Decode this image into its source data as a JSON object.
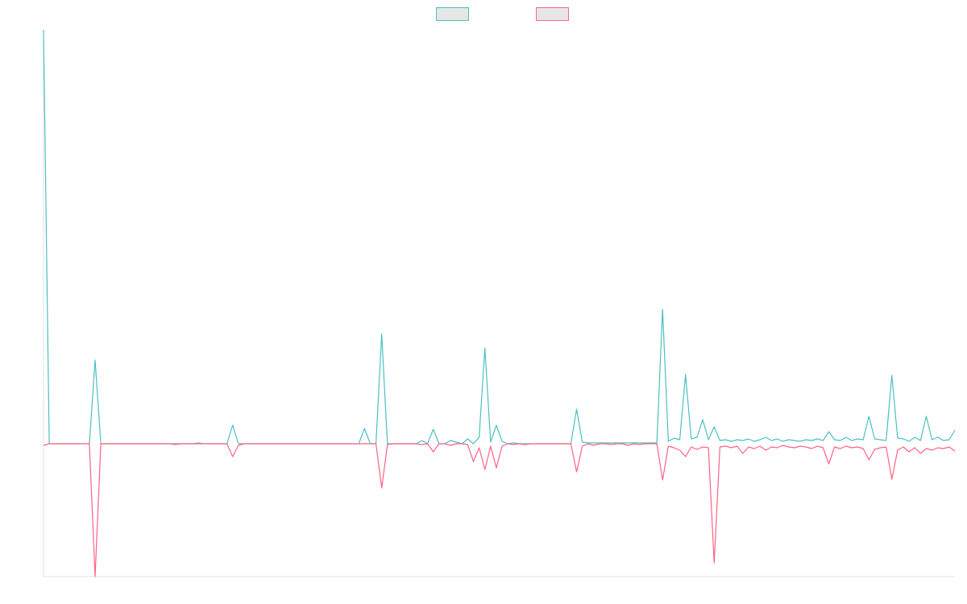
{
  "chart_data": {
    "type": "line",
    "x": [
      0,
      1,
      2,
      3,
      4,
      5,
      6,
      7,
      8,
      9,
      10,
      11,
      12,
      13,
      14,
      15,
      16,
      17,
      18,
      19,
      20,
      21,
      22,
      23,
      24,
      25,
      26,
      27,
      28,
      29,
      30,
      31,
      32,
      33,
      34,
      35,
      36,
      37,
      38,
      39,
      40,
      41,
      42,
      43,
      44,
      45,
      46,
      47,
      48,
      49,
      50,
      51,
      52,
      53,
      54,
      55,
      56,
      57,
      58,
      59,
      60,
      61,
      62,
      63,
      64,
      65,
      66,
      67,
      68,
      69,
      70,
      71,
      72,
      73,
      74,
      75,
      76,
      77,
      78,
      79,
      80,
      81,
      82,
      83,
      84,
      85,
      86,
      87,
      88,
      89,
      90,
      91,
      92,
      93,
      94,
      95,
      96,
      97,
      98,
      99,
      100,
      101,
      102,
      103,
      104,
      105,
      106,
      107,
      108,
      109,
      110,
      111,
      112,
      113,
      114,
      115,
      116,
      117,
      118,
      119,
      120,
      121,
      122,
      123,
      124,
      125,
      126,
      127,
      128,
      129,
      130,
      131,
      132,
      133,
      134,
      135,
      136,
      137,
      138,
      139,
      140,
      141,
      142,
      143,
      144,
      145,
      146,
      147,
      148,
      149,
      150,
      151,
      152,
      153,
      154,
      155,
      156,
      157,
      158,
      159
    ],
    "xlim": [
      0,
      159
    ],
    "ylim": [
      -165,
      514
    ],
    "legend": "top",
    "series": [
      {
        "color": "#4bc0c0",
        "values": [
          514,
          0,
          0,
          0,
          0,
          0,
          0,
          0,
          0,
          104,
          0,
          0,
          0,
          0,
          0,
          0,
          0,
          0,
          0,
          0,
          0,
          0,
          0,
          0,
          0,
          0,
          0,
          1,
          0,
          0,
          0,
          0,
          0,
          23,
          0,
          0,
          0,
          0,
          0,
          0,
          0,
          0,
          0,
          0,
          0,
          0,
          0,
          0,
          0,
          0,
          0,
          0,
          0,
          0,
          0,
          0,
          19,
          0,
          0,
          136,
          0,
          0,
          0,
          0,
          0,
          0,
          4,
          0,
          18,
          0,
          0,
          4,
          2,
          0,
          6,
          0,
          8,
          119,
          2,
          23,
          3,
          0,
          1,
          0,
          0,
          0,
          0,
          0,
          0,
          0,
          0,
          0,
          0,
          43,
          2,
          1,
          1,
          1,
          1,
          1,
          1,
          1,
          1,
          1,
          1,
          1,
          1,
          1,
          167,
          3,
          7,
          5,
          86,
          6,
          8,
          30,
          5,
          21,
          4,
          5,
          3,
          5,
          4,
          6,
          3,
          5,
          8,
          4,
          6,
          3,
          5,
          4,
          3,
          5,
          4,
          6,
          4,
          15,
          5,
          4,
          8,
          4,
          6,
          5,
          34,
          6,
          5,
          4,
          85,
          7,
          6,
          3,
          8,
          4,
          34,
          5,
          8,
          4,
          5,
          17
        ]
      },
      {
        "color": "#ff6384",
        "values": [
          -2,
          0,
          0,
          0,
          0,
          0,
          0,
          0,
          0,
          -165,
          0,
          0,
          0,
          0,
          0,
          0,
          0,
          0,
          0,
          0,
          0,
          0,
          0,
          -1,
          0,
          0,
          0,
          0,
          0,
          0,
          0,
          0,
          0,
          -16,
          -2,
          0,
          0,
          0,
          0,
          0,
          0,
          0,
          0,
          0,
          0,
          0,
          0,
          0,
          0,
          0,
          0,
          0,
          0,
          0,
          0,
          0,
          0,
          0,
          0,
          -55,
          -1,
          0,
          0,
          0,
          0,
          0,
          -1,
          0,
          -10,
          0,
          0,
          -2,
          0,
          0,
          -1,
          -22,
          -5,
          -32,
          -3,
          -30,
          -3,
          0,
          -1,
          0,
          -1,
          0,
          0,
          0,
          0,
          0,
          0,
          0,
          0,
          -35,
          -3,
          0,
          -2,
          0,
          0,
          -1,
          0,
          0,
          -2,
          0,
          -1,
          0,
          0,
          0,
          -45,
          -3,
          -5,
          -8,
          -16,
          -4,
          -7,
          -4,
          -5,
          -148,
          -4,
          -3,
          -5,
          -3,
          -12,
          -4,
          -6,
          -3,
          -8,
          -4,
          -5,
          -2,
          -4,
          -5,
          -3,
          -4,
          -6,
          -3,
          -5,
          -25,
          -4,
          -6,
          -3,
          -5,
          -4,
          -6,
          -20,
          -7,
          -5,
          -4,
          -44,
          -8,
          -4,
          -10,
          -5,
          -12,
          -6,
          -8,
          -5,
          -6,
          -4,
          -9
        ]
      }
    ]
  }
}
